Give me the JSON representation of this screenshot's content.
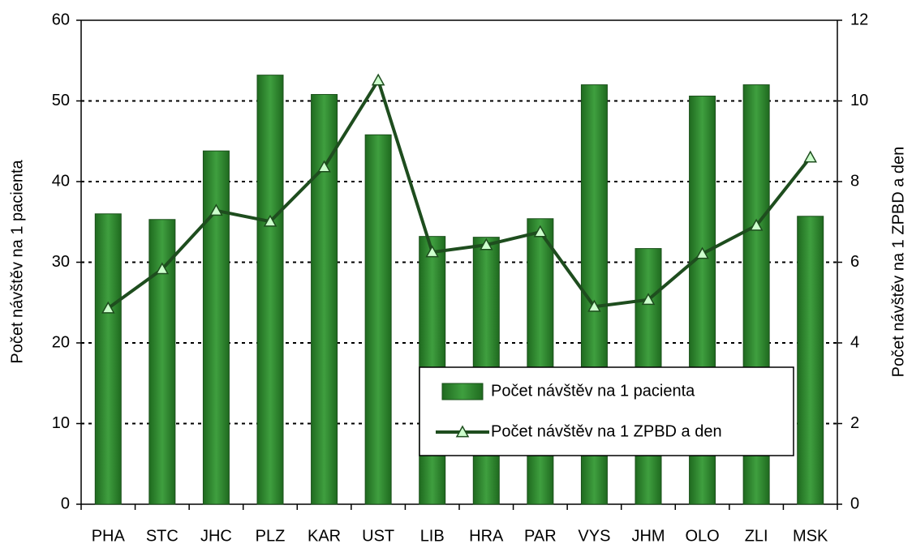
{
  "chart_data": {
    "type": "bar_line",
    "categories": [
      "PHA",
      "STC",
      "JHC",
      "PLZ",
      "KAR",
      "UST",
      "LIB",
      "HRA",
      "PAR",
      "VYS",
      "JHM",
      "OLO",
      "ZLI",
      "MSK"
    ],
    "series": [
      {
        "name": "Počet návštěv na 1 pacienta",
        "type": "bar",
        "color": "#3f9f3f",
        "axis": "y",
        "values": [
          36,
          35.3,
          43.8,
          53.2,
          50.8,
          45.8,
          33.2,
          33.1,
          35.4,
          52,
          31.7,
          50.6,
          52,
          35.7
        ]
      },
      {
        "name": "Počet návštěv na 1 ZPBD a den",
        "type": "line",
        "color": "#1e4d1e",
        "marker_color": "#ccffcc",
        "axis": "y2",
        "values": [
          4.86,
          5.83,
          7.28,
          7.01,
          8.36,
          10.51,
          6.25,
          6.43,
          6.75,
          4.9,
          5.07,
          6.21,
          6.91,
          8.6
        ]
      }
    ],
    "ylabel": "Počet návštěv na 1 pacienta",
    "y2label": "Počet návštěv na 1 ZPBD a den",
    "ylim": [
      0,
      60
    ],
    "yticks": [
      0,
      10,
      20,
      30,
      40,
      50,
      60
    ],
    "y2lim": [
      0,
      12
    ],
    "y2ticks": [
      0,
      2,
      4,
      6,
      8,
      10,
      12
    ],
    "grid": true,
    "legend": "lower center"
  }
}
